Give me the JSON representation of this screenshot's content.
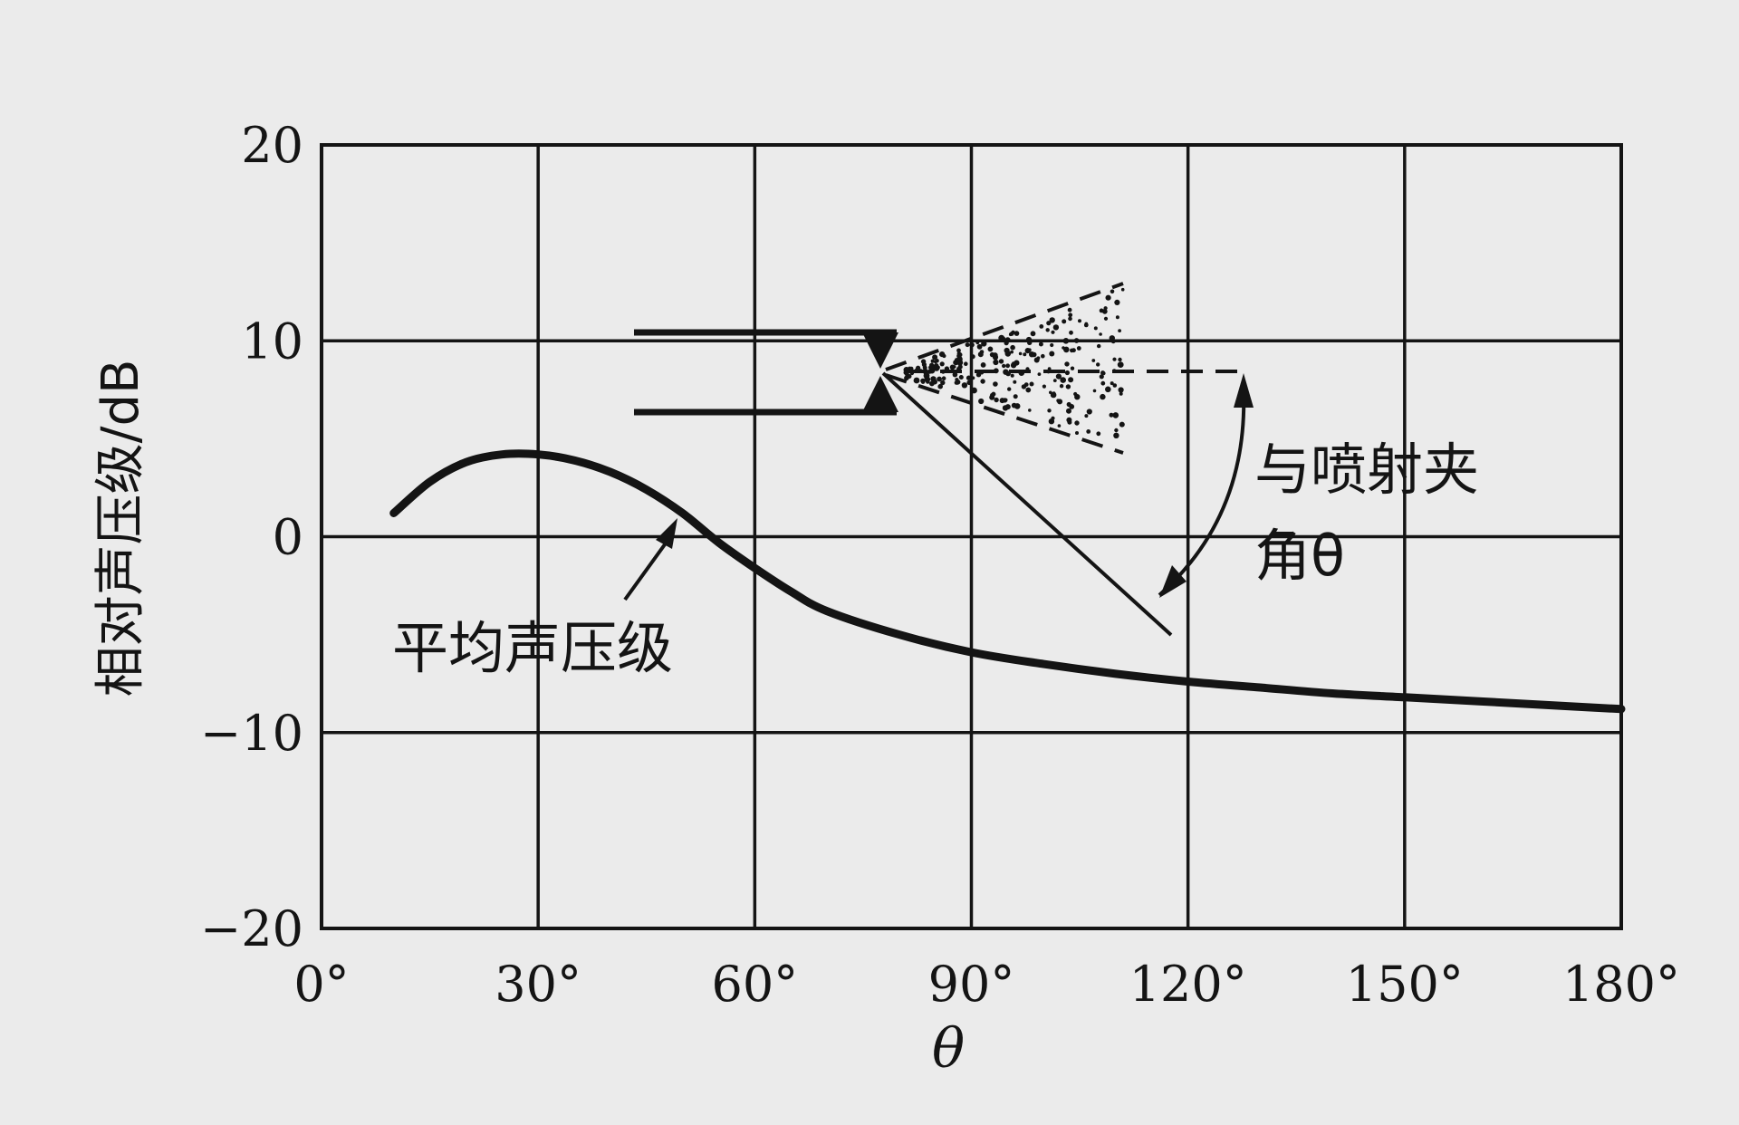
{
  "chart_data": {
    "type": "line",
    "title": "",
    "xlabel": "θ",
    "ylabel": "相对声压级/dB",
    "xlim": [
      0,
      180
    ],
    "ylim": [
      -20,
      20
    ],
    "grid": true,
    "x_ticks": [
      {
        "value": 0,
        "label": "0°"
      },
      {
        "value": 30,
        "label": "30°"
      },
      {
        "value": 60,
        "label": "60°"
      },
      {
        "value": 90,
        "label": "90°"
      },
      {
        "value": 120,
        "label": "120°"
      },
      {
        "value": 150,
        "label": "150°"
      },
      {
        "value": 180,
        "label": "180°"
      }
    ],
    "y_ticks": [
      {
        "value": 20,
        "label": "20"
      },
      {
        "value": 10,
        "label": "10"
      },
      {
        "value": 0,
        "label": "0"
      },
      {
        "value": -10,
        "label": "−10"
      },
      {
        "value": -20,
        "label": "−20"
      }
    ],
    "series": [
      {
        "name": "平均声压级",
        "x": [
          10,
          15,
          20,
          25,
          30,
          35,
          40,
          45,
          50,
          55,
          60,
          65,
          70,
          80,
          90,
          100,
          110,
          120,
          130,
          140,
          150,
          160,
          170,
          180
        ],
        "y": [
          1.2,
          2.8,
          3.8,
          4.2,
          4.2,
          3.9,
          3.3,
          2.4,
          1.2,
          -0.3,
          -1.6,
          -2.8,
          -3.8,
          -5.0,
          -5.9,
          -6.5,
          -7.0,
          -7.4,
          -7.7,
          -8.0,
          -8.2,
          -8.4,
          -8.6,
          -8.8
        ]
      }
    ],
    "annotations": [
      {
        "text": "平均声压级",
        "points_to": {
          "x": 48,
          "y": 1.5
        }
      },
      {
        "text_lines": [
          "与喷射夹",
          "角θ"
        ],
        "describes": "angle θ between jet axis and measurement direction"
      }
    ]
  }
}
